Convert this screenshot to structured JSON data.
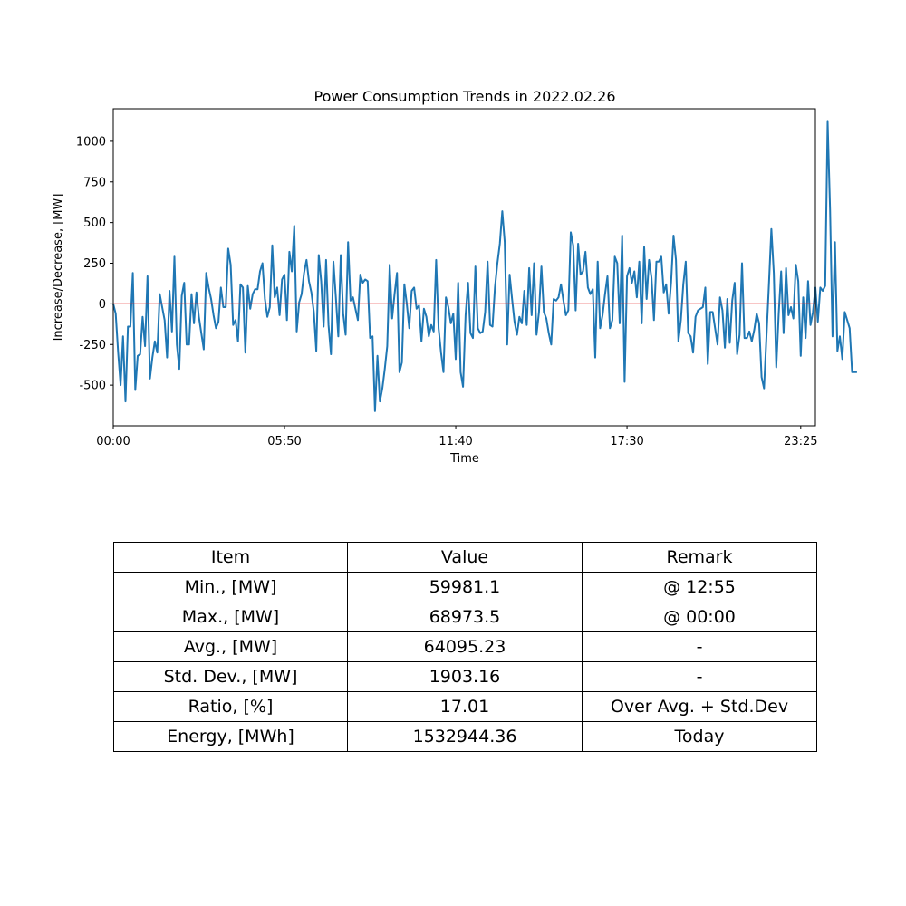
{
  "chart_data": {
    "type": "line",
    "title": "Power Consumption Trends in 2022.02.26",
    "xlabel": "Time",
    "ylabel": "Increase/Decrease, [MW]",
    "xticks": [
      "00:00",
      "05:50",
      "11:40",
      "17:30",
      "23:25"
    ],
    "yticks": [
      -500,
      -250,
      0,
      250,
      500,
      750,
      1000
    ],
    "ylim": [
      -750,
      1200
    ],
    "x_range": [
      "00:00",
      "23:55"
    ],
    "sampling_interval": "5 min",
    "reference_line": {
      "value": 0,
      "color": "#e41a1c"
    },
    "line_color": "#1f77b4",
    "grid": false,
    "values": [
      0,
      -60,
      -300,
      -500,
      -200,
      -600,
      -140,
      -140,
      190,
      -530,
      -320,
      -310,
      -80,
      -260,
      170,
      -460,
      -330,
      -230,
      -300,
      60,
      -20,
      -100,
      -330,
      80,
      -170,
      290,
      -250,
      -400,
      50,
      130,
      -250,
      -250,
      60,
      -120,
      70,
      -80,
      -180,
      -280,
      190,
      100,
      30,
      -70,
      -150,
      -110,
      100,
      -20,
      -20,
      340,
      240,
      -130,
      -100,
      -230,
      120,
      100,
      -300,
      110,
      -30,
      60,
      90,
      90,
      200,
      250,
      30,
      -80,
      -20,
      360,
      40,
      100,
      -70,
      150,
      180,
      -100,
      320,
      200,
      480,
      -170,
      10,
      60,
      190,
      270,
      140,
      70,
      -50,
      -290,
      300,
      140,
      -140,
      270,
      -130,
      -310,
      260,
      40,
      -200,
      300,
      -60,
      -190,
      380,
      20,
      40,
      -30,
      -100,
      180,
      130,
      150,
      140,
      -210,
      -200,
      -660,
      -320,
      -600,
      -520,
      -400,
      -260,
      240,
      -90,
      60,
      190,
      -420,
      -360,
      120,
      0,
      -150,
      80,
      100,
      -30,
      -10,
      -230,
      -30,
      -80,
      -200,
      -130,
      -170,
      270,
      -150,
      -300,
      -420,
      40,
      -20,
      -120,
      -60,
      -340,
      130,
      -420,
      -510,
      -70,
      130,
      -180,
      -210,
      230,
      -150,
      -180,
      -170,
      -50,
      260,
      -130,
      -140,
      100,
      250,
      370,
      570,
      380,
      -250,
      180,
      30,
      -110,
      -190,
      -80,
      -120,
      80,
      -130,
      220,
      -70,
      250,
      -190,
      -50,
      230,
      -50,
      -90,
      -180,
      -250,
      30,
      20,
      40,
      120,
      20,
      -70,
      -40,
      440,
      360,
      -40,
      370,
      180,
      200,
      320,
      100,
      60,
      90,
      -330,
      260,
      -150,
      -70,
      60,
      170,
      -150,
      -100,
      290,
      250,
      -120,
      420,
      -480,
      170,
      220,
      130,
      200,
      40,
      260,
      -120,
      350,
      30,
      270,
      160,
      -100,
      260,
      260,
      290,
      70,
      120,
      -60,
      130,
      420,
      270,
      -230,
      -100,
      120,
      260,
      -180,
      -200,
      -300,
      -80,
      -40,
      -30,
      -20,
      100,
      -370,
      -50,
      -50,
      -150,
      -250,
      40,
      -40,
      -270,
      30,
      -240,
      20,
      130,
      -310,
      -190,
      250,
      -210,
      -210,
      -170,
      -230,
      -160,
      -60,
      -120,
      -450,
      -520,
      -200,
      120,
      460,
      190,
      -390,
      -60,
      200,
      -180,
      220,
      -70,
      -20,
      -90,
      240,
      140,
      -320,
      40,
      -210,
      140,
      -130,
      -50,
      100,
      -110,
      100,
      80,
      110,
      1120,
      580,
      -200,
      380,
      -290,
      -200,
      -340,
      -50,
      -100,
      -150,
      -420,
      -420,
      -420
    ]
  },
  "table": {
    "headers": [
      "Item",
      "Value",
      "Remark"
    ],
    "rows": [
      [
        "Min., [MW]",
        "59981.1",
        "@ 12:55"
      ],
      [
        "Max., [MW]",
        "68973.5",
        "@ 00:00"
      ],
      [
        "Avg., [MW]",
        "64095.23",
        "-"
      ],
      [
        "Std. Dev., [MW]",
        "1903.16",
        "-"
      ],
      [
        "Ratio, [%]",
        "17.01",
        "Over Avg. + Std.Dev"
      ],
      [
        "Energy, [MWh]",
        "1532944.36",
        "Today"
      ]
    ]
  }
}
